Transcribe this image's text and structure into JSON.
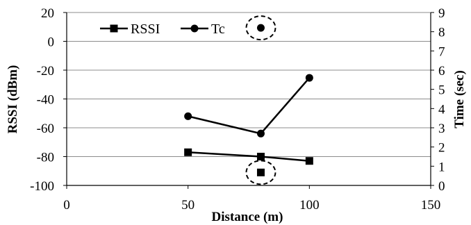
{
  "chart_data": {
    "type": "line",
    "xlabel": "Distance (m)",
    "ylabel": "RSSI (dBm)",
    "y2label": "Time (sec)",
    "xlim": [
      0,
      150
    ],
    "ylim": [
      -100,
      20
    ],
    "y2lim": [
      0,
      9
    ],
    "xticks": [
      0,
      50,
      100,
      150
    ],
    "yticks": [
      20,
      0,
      -20,
      -40,
      -60,
      -80,
      -100
    ],
    "y2ticks": [
      0,
      1,
      2,
      3,
      4,
      5,
      6,
      7,
      8,
      9
    ],
    "grid": "horizontal",
    "legend": "top-left",
    "series": [
      {
        "name": "RSSI",
        "axis": "left",
        "marker": "square",
        "x": [
          50,
          80,
          100
        ],
        "y": [
          -77,
          -80,
          -83
        ]
      },
      {
        "name": "Tc",
        "axis": "right",
        "marker": "circle",
        "x": [
          50,
          80,
          100
        ],
        "y": [
          3.6,
          2.7,
          5.6
        ]
      }
    ],
    "annotations": [
      {
        "series": "RSSI",
        "axis": "left",
        "marker": "square",
        "x": 80,
        "y": -91,
        "circled": true
      },
      {
        "series": "Tc",
        "axis": "right",
        "marker": "circle",
        "x": 80,
        "y": 8.2,
        "circled": true
      }
    ]
  }
}
